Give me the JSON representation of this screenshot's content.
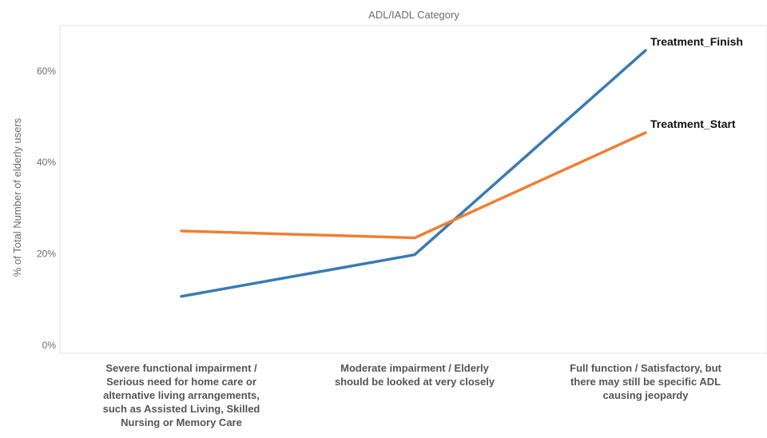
{
  "chart_data": {
    "type": "line",
    "title": "ADL/IADL Category",
    "xlabel": "",
    "ylabel": "% of Total Number of elderly users",
    "ylim": [
      0,
      0.7
    ],
    "yticks": [
      {
        "value": 0.0,
        "label": "0%"
      },
      {
        "value": 0.2,
        "label": "20%"
      },
      {
        "value": 0.4,
        "label": "40%"
      },
      {
        "value": 0.6,
        "label": "60%"
      }
    ],
    "categories": [
      [
        "Severe functional impairment /",
        "Serious need for home care or",
        "alternative living arrangements,",
        "such as Assisted Living, Skilled",
        "Nursing or Memory Care"
      ],
      [
        "Moderate impairment / Elderly",
        "should be looked at very closely"
      ],
      [
        "Full function / Satisfactory, but",
        "there may still be specific ADL",
        "causing jeopardy"
      ]
    ],
    "series": [
      {
        "name": "Treatment_Finish",
        "color": "#3a7ab5",
        "values": [
          0.107,
          0.198,
          0.645
        ]
      },
      {
        "name": "Treatment_Start",
        "color": "#f07f33",
        "values": [
          0.25,
          0.235,
          0.465
        ]
      }
    ],
    "grid": false,
    "legend": "labels at line ends"
  }
}
